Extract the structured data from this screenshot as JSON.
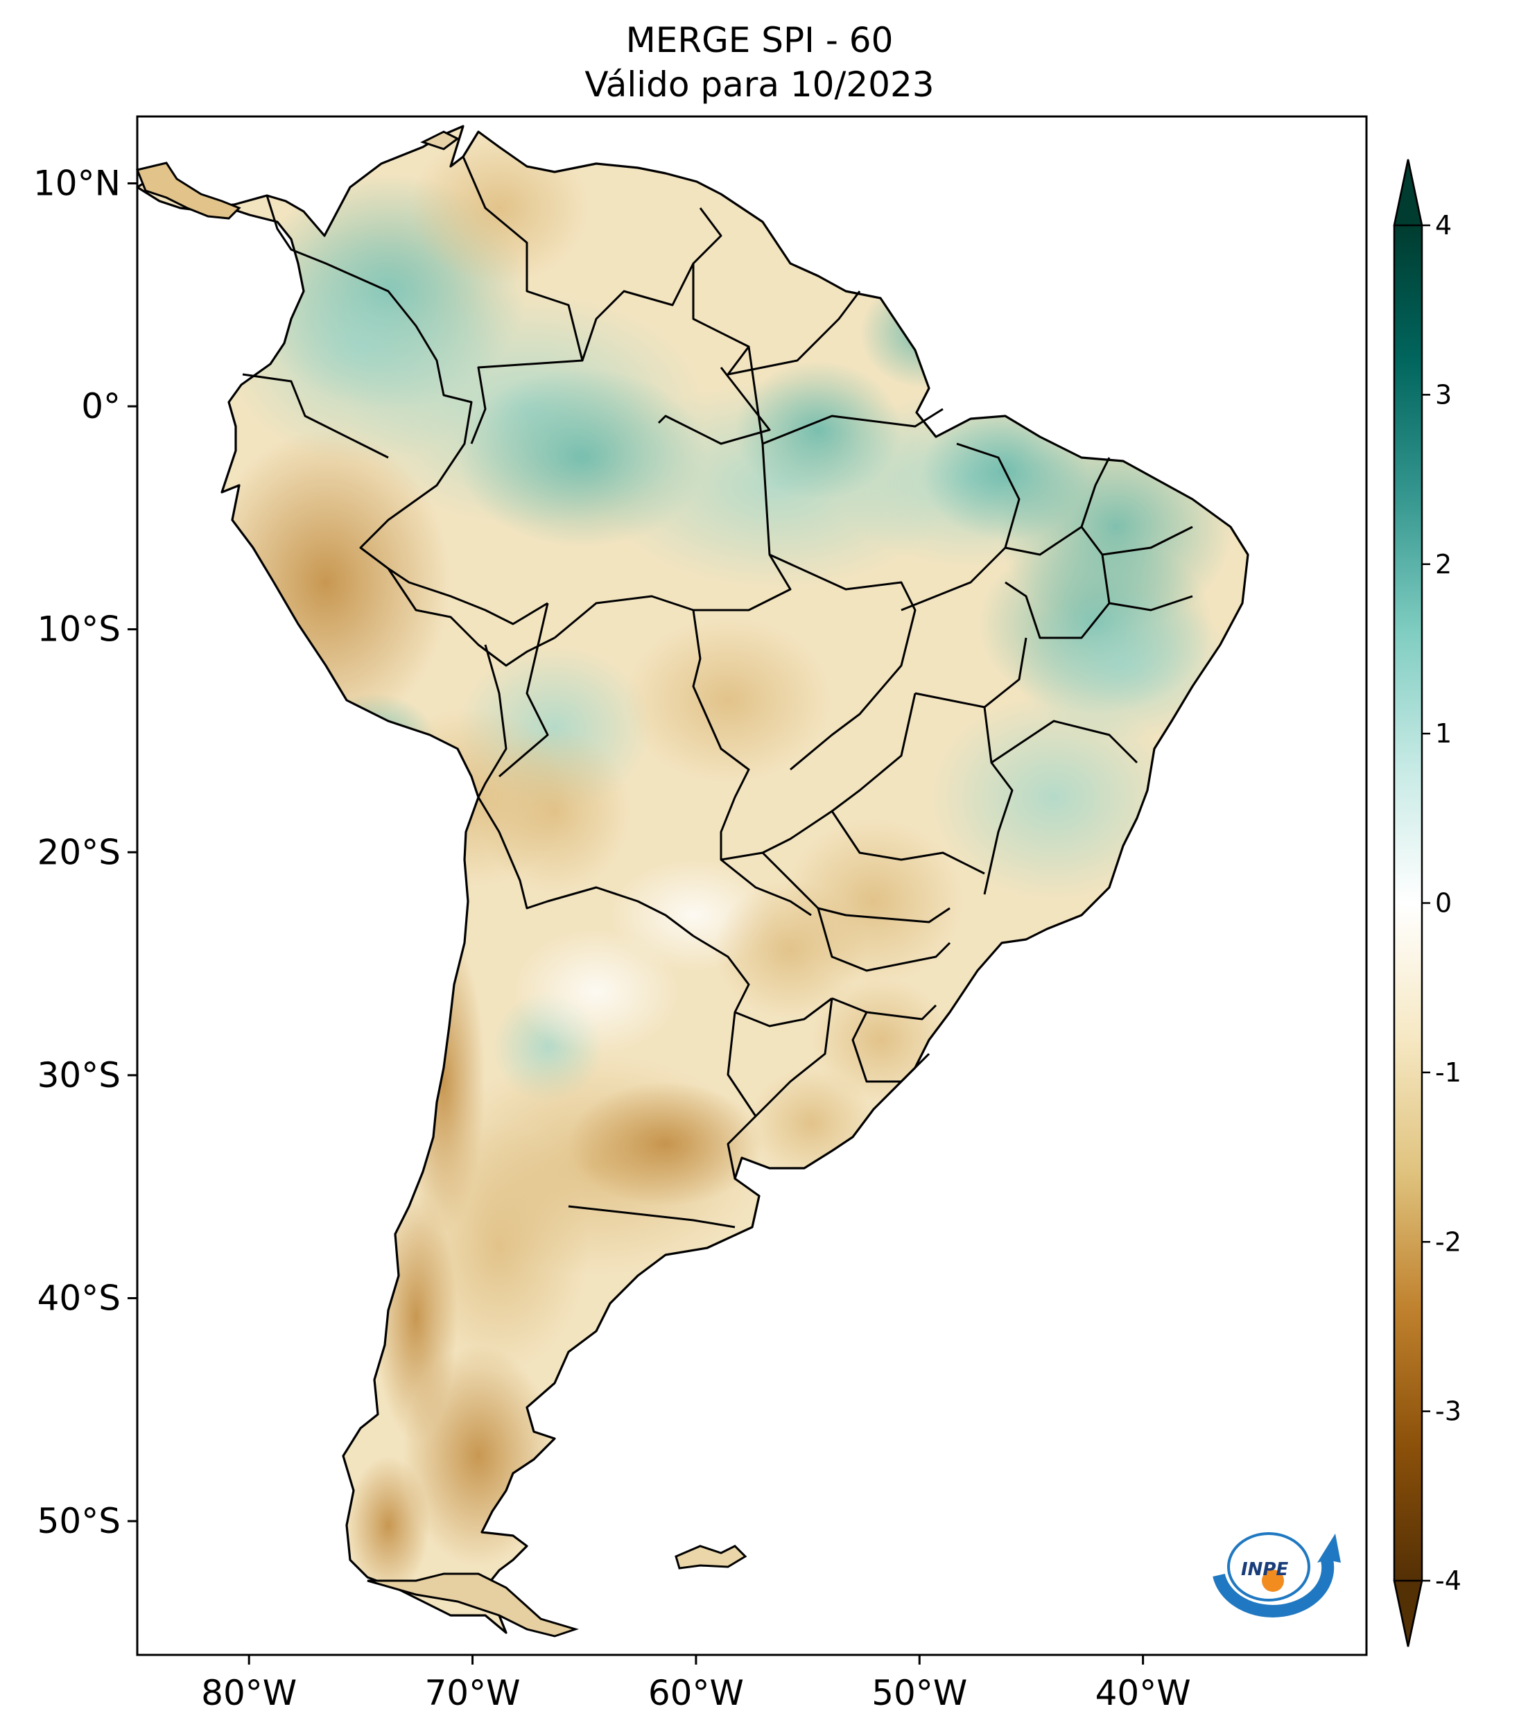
{
  "title": {
    "line1": "MERGE   SPI - 60",
    "line2": "Válido para 10/2023"
  },
  "map": {
    "lon_range": [
      -85,
      -30
    ],
    "lat_range": [
      -56,
      13
    ],
    "lat_ticks": [
      {
        "value": 10,
        "label": "10°N"
      },
      {
        "value": 0,
        "label": "0°"
      },
      {
        "value": -10,
        "label": "10°S"
      },
      {
        "value": -20,
        "label": "20°S"
      },
      {
        "value": -30,
        "label": "30°S"
      },
      {
        "value": -40,
        "label": "40°S"
      },
      {
        "value": -50,
        "label": "50°S"
      }
    ],
    "lon_ticks": [
      {
        "value": -80,
        "label": "80°W"
      },
      {
        "value": -70,
        "label": "70°W"
      },
      {
        "value": -60,
        "label": "60°W"
      },
      {
        "value": -50,
        "label": "50°W"
      },
      {
        "value": -40,
        "label": "40°W"
      }
    ]
  },
  "colorbar": {
    "range": [
      -4,
      4
    ],
    "colormap": "BrBG",
    "ticks": [
      {
        "value": 4,
        "label": "4"
      },
      {
        "value": 3,
        "label": "3"
      },
      {
        "value": 2,
        "label": "2"
      },
      {
        "value": 1,
        "label": "1"
      },
      {
        "value": 0,
        "label": "0"
      },
      {
        "value": -1,
        "label": "-1"
      },
      {
        "value": -2,
        "label": "-2"
      },
      {
        "value": -3,
        "label": "-3"
      },
      {
        "value": -4,
        "label": "-4"
      }
    ],
    "colors": [
      "#543005",
      "#8c510a",
      "#bf812d",
      "#dfc27d",
      "#f6e8c3",
      "#ffffff",
      "#c7eae5",
      "#80cdc1",
      "#35978f",
      "#01665e",
      "#003c30"
    ]
  },
  "logo": {
    "text": "INPE",
    "ring_color": "#1f78c1",
    "dot_color": "#f28c1f"
  }
}
